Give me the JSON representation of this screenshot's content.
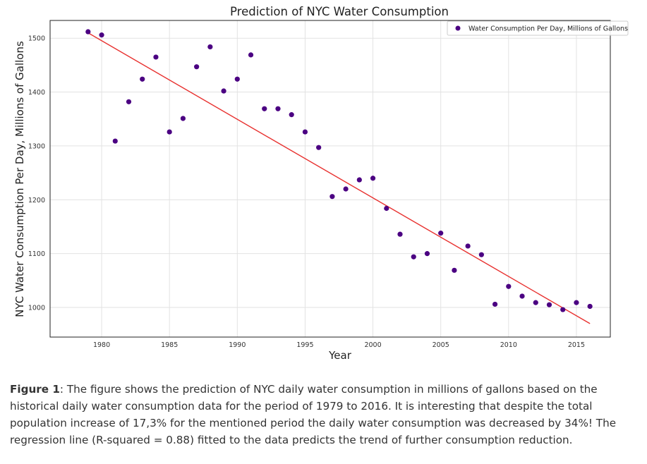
{
  "chart_data": {
    "type": "scatter",
    "title": "Prediction of NYC Water Consumption",
    "xlabel": "Year",
    "ylabel": "NYC Water Consumption Per Day, Millions of Gallons",
    "xlim": [
      1976.2,
      2017.5
    ],
    "ylim": [
      945,
      1533
    ],
    "xticks": [
      "1980",
      "1985",
      "1990",
      "1995",
      "2000",
      "2005",
      "2010",
      "2015"
    ],
    "xtick_values": [
      1980,
      1985,
      1990,
      1995,
      2000,
      2005,
      2010,
      2015
    ],
    "yticks": [
      "1000",
      "1100",
      "1200",
      "1300",
      "1400",
      "1500"
    ],
    "ytick_values": [
      1000,
      1100,
      1200,
      1300,
      1400,
      1500
    ],
    "grid": true,
    "legend_position": "top-right",
    "series": [
      {
        "name": "Water Consumption Per Day, Millions of Gallons",
        "color": "#4b0082",
        "marker": "circle",
        "x": [
          1979,
          1980,
          1981,
          1982,
          1983,
          1984,
          1985,
          1986,
          1987,
          1988,
          1989,
          1990,
          1991,
          1992,
          1993,
          1994,
          1995,
          1996,
          1997,
          1998,
          1999,
          2000,
          2001,
          2002,
          2003,
          2004,
          2005,
          2006,
          2007,
          2008,
          2009,
          2010,
          2011,
          2012,
          2013,
          2014,
          2015,
          2016
        ],
        "y": [
          1512,
          1506,
          1309,
          1382,
          1424,
          1465,
          1326,
          1351,
          1447,
          1484,
          1402,
          1424,
          1469,
          1369,
          1369,
          1358,
          1326,
          1297,
          1206,
          1220,
          1237,
          1240,
          1184,
          1136,
          1094,
          1100,
          1138,
          1069,
          1114,
          1098,
          1006,
          1039,
          1021,
          1009,
          1005,
          996,
          1009,
          1002
        ]
      }
    ],
    "regression_line": {
      "color": "#e8312f",
      "x": [
        1979,
        2016
      ],
      "y": [
        1510,
        970
      ]
    }
  },
  "caption": {
    "label": "Figure 1",
    "text": ": The figure shows the prediction of NYC daily water consumption in millions of gallons based on the historical daily water consumption data for the period of 1979 to 2016. It is interesting that despite the total population increase of 17,3% for the mentioned period the daily water consumption was decreased by 34%! The regression line (R-squared = 0.88) fitted to the data predicts the trend of further consumption reduction."
  }
}
